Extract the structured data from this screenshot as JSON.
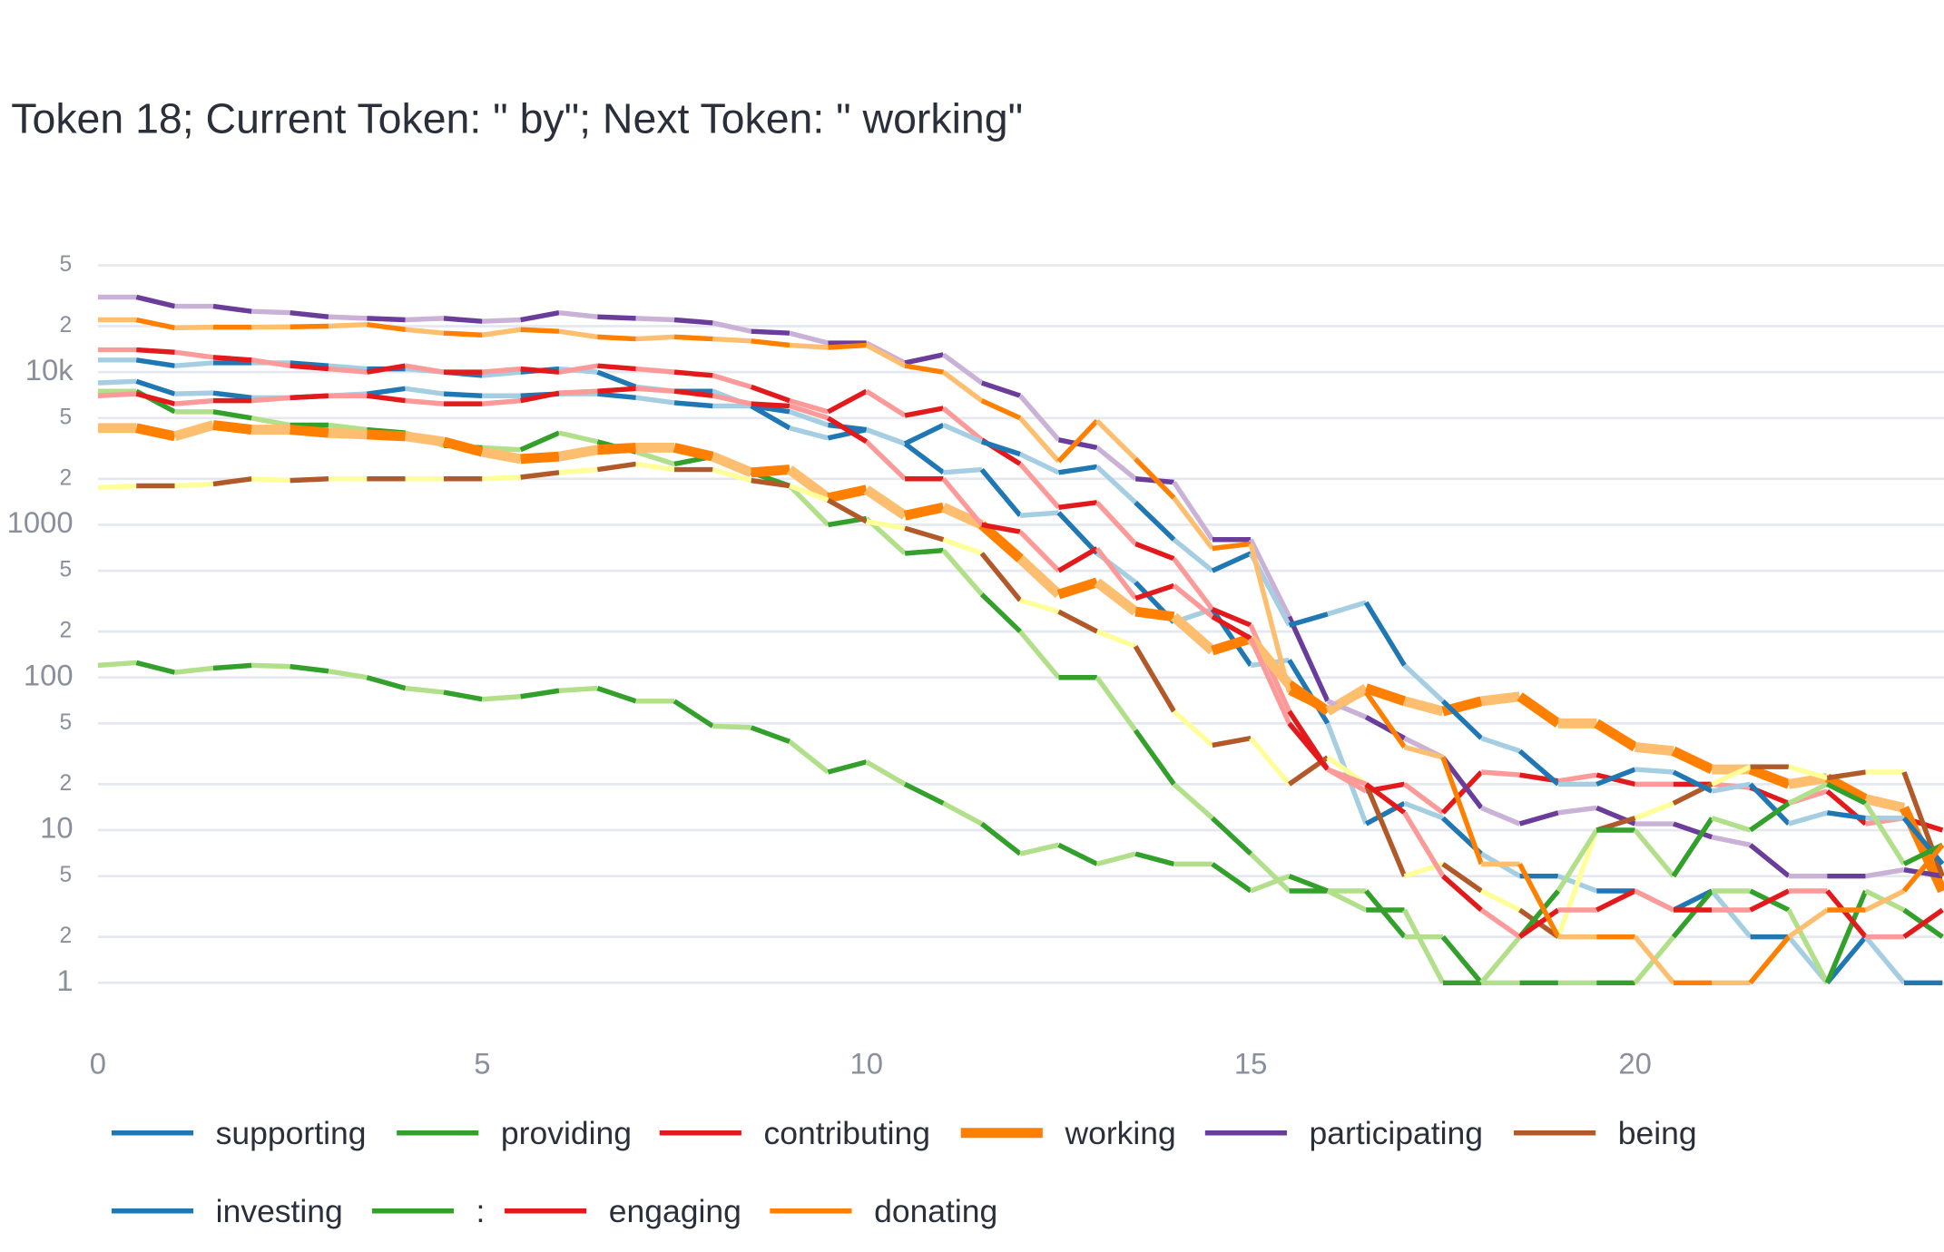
{
  "chart_data": {
    "type": "line",
    "title": "Token 18; Current Token: \" by\"; Next Token: \" working\"",
    "log_y": true,
    "grid": true,
    "xlim": [
      0,
      24.02
    ],
    "ylim": [
      0.5,
      65000
    ],
    "xticks": [
      0,
      5,
      10,
      15,
      20
    ],
    "yticks": [
      1,
      2,
      5,
      10,
      {
        "value": 20,
        "label": "2"
      },
      {
        "value": 50,
        "label": "5"
      },
      100,
      {
        "value": 200,
        "label": "2"
      },
      {
        "value": 500,
        "label": "5"
      },
      1000,
      {
        "value": 2000,
        "label": "2"
      },
      {
        "value": 5000,
        "label": "5"
      },
      {
        "value": 10000,
        "label": "10k"
      },
      {
        "value": 20000,
        "label": "2"
      },
      {
        "value": 50000,
        "label": "5"
      }
    ],
    "x": [
      0,
      0.5,
      1,
      1.5,
      2,
      2.5,
      3,
      3.5,
      4,
      4.5,
      5,
      5.5,
      6,
      6.5,
      7,
      7.5,
      8,
      8.5,
      9,
      9.5,
      10,
      10.5,
      11,
      11.5,
      12,
      12.5,
      13,
      13.5,
      14,
      14.5,
      15,
      15.5,
      16,
      16.5,
      17,
      17.5,
      18,
      18.5,
      19,
      19.5,
      20,
      20.5,
      21,
      21.5,
      22,
      22.5,
      23,
      23.5,
      24
    ],
    "series": [
      {
        "name": "supporting",
        "color": "#1f78b4",
        "light_color": "#a6cee3",
        "line_width": 4,
        "values": [
          12000,
          12000,
          11000,
          11500,
          11500,
          11500,
          11000,
          10500,
          10500,
          10000,
          9500,
          10000,
          10500,
          10000,
          8000,
          7500,
          7500,
          6000,
          5500,
          4500,
          4200,
          3400,
          2200,
          2300,
          1150,
          1200,
          650,
          420,
          230,
          280,
          120,
          130,
          50,
          11,
          15,
          12,
          7,
          5,
          5,
          4,
          4,
          3,
          4,
          2,
          2,
          1,
          2,
          1,
          1
        ]
      },
      {
        "name": "providing",
        "color": "#33a02c",
        "light_color": "#b2df8a",
        "line_width": 4,
        "values": [
          7500,
          7500,
          5500,
          5500,
          5000,
          4500,
          4500,
          4200,
          4000,
          3300,
          3200,
          3100,
          4000,
          3500,
          3000,
          2500,
          2800,
          2200,
          1800,
          1000,
          1100,
          650,
          680,
          350,
          200,
          100,
          100,
          45,
          20,
          12,
          7,
          4,
          4,
          4,
          2,
          2,
          1,
          1,
          1,
          1,
          1,
          2,
          4,
          4,
          3,
          1,
          4,
          3,
          2
        ]
      },
      {
        "name": "contributing",
        "color": "#e31a1c",
        "light_color": "#fb9a99",
        "line_width": 4,
        "values": [
          14000,
          14000,
          13500,
          12500,
          12000,
          11000,
          10500,
          10000,
          11000,
          10000,
          10000,
          10500,
          10000,
          11000,
          10500,
          10000,
          9500,
          8000,
          6500,
          5500,
          7500,
          5200,
          5800,
          3600,
          2500,
          1300,
          1400,
          750,
          600,
          280,
          220,
          60,
          25,
          18,
          20,
          13,
          24,
          23,
          21,
          23,
          20,
          20,
          20,
          19,
          15,
          18,
          11,
          12,
          10
        ]
      },
      {
        "name": "working",
        "color": "#ff7f00",
        "light_color": "#fdbf6f",
        "line_width": 8,
        "values": [
          4300,
          4300,
          3800,
          4500,
          4200,
          4200,
          4000,
          3900,
          3800,
          3500,
          3000,
          2700,
          2800,
          3100,
          3200,
          3200,
          2800,
          2200,
          2300,
          1500,
          1700,
          1150,
          1300,
          1000,
          600,
          350,
          420,
          270,
          250,
          150,
          180,
          90,
          60,
          85,
          70,
          60,
          70,
          75,
          50,
          50,
          35,
          33,
          25,
          25,
          20,
          22,
          16,
          14,
          4
        ]
      },
      {
        "name": "participating",
        "color": "#6a3d9a",
        "light_color": "#cab2d6",
        "line_width": 4,
        "values": [
          31000,
          31000,
          27000,
          27000,
          25000,
          24500,
          23000,
          22500,
          22000,
          22500,
          21500,
          22000,
          24500,
          23000,
          22500,
          22000,
          21000,
          18500,
          18000,
          15500,
          15500,
          11500,
          13000,
          8500,
          7000,
          3600,
          3200,
          2000,
          1900,
          800,
          800,
          250,
          70,
          55,
          40,
          30,
          14,
          11,
          13,
          14,
          11,
          11,
          9,
          8,
          5,
          5,
          5,
          5.5,
          5
        ]
      },
      {
        "name": "being",
        "color": "#b15928",
        "light_color": "#ffff99",
        "line_width": 4,
        "values": [
          1750,
          1800,
          1800,
          1850,
          2000,
          1950,
          2000,
          2000,
          2000,
          2000,
          2000,
          2050,
          2200,
          2300,
          2500,
          2300,
          2300,
          1950,
          1800,
          1450,
          1050,
          950,
          800,
          650,
          320,
          270,
          200,
          160,
          60,
          36,
          40,
          20,
          30,
          20,
          5,
          6,
          4,
          3,
          2,
          10,
          12,
          15,
          20,
          26,
          26,
          22,
          24,
          24,
          5
        ]
      },
      {
        "name": "investing",
        "color": "#1f78b4",
        "light_color": "#a6cee3",
        "line_width": 4,
        "values": [
          8500,
          8700,
          7200,
          7300,
          6800,
          6800,
          7000,
          7200,
          7800,
          7200,
          7000,
          7000,
          7200,
          7200,
          6800,
          6300,
          6000,
          6000,
          4300,
          3700,
          4200,
          3400,
          4500,
          3500,
          2900,
          2200,
          2400,
          1400,
          800,
          500,
          650,
          220,
          260,
          310,
          120,
          70,
          40,
          33,
          20,
          20,
          25,
          24,
          18,
          20,
          11,
          13,
          12,
          12,
          6
        ]
      },
      {
        "name": ":",
        "color": "#33a02c",
        "light_color": "#b2df8a",
        "line_width": 4,
        "values": [
          120,
          125,
          108,
          115,
          120,
          118,
          110,
          100,
          85,
          80,
          72,
          75,
          82,
          85,
          70,
          70,
          48,
          47,
          38,
          24,
          28,
          20,
          15,
          11,
          7,
          8,
          6,
          7,
          6,
          6,
          4,
          5,
          4,
          3,
          3,
          1,
          1,
          2,
          4,
          10,
          10,
          5,
          12,
          10,
          15,
          20,
          15,
          6,
          8
        ]
      },
      {
        "name": "engaging",
        "color": "#e31a1c",
        "light_color": "#fb9a99",
        "line_width": 4,
        "values": [
          7000,
          7200,
          6200,
          6500,
          6500,
          6800,
          7000,
          7000,
          6500,
          6200,
          6200,
          6500,
          7300,
          7500,
          7800,
          7500,
          7000,
          6200,
          6000,
          5000,
          3500,
          2000,
          2000,
          1000,
          900,
          500,
          700,
          330,
          400,
          250,
          180,
          50,
          25,
          20,
          13,
          5,
          3,
          2,
          3,
          3,
          4,
          3,
          3,
          3,
          4,
          4,
          2,
          2,
          3
        ]
      },
      {
        "name": "donating",
        "color": "#ff7f00",
        "light_color": "#fdbf6f",
        "line_width": 4,
        "values": [
          22000,
          22000,
          19500,
          19700,
          19700,
          19800,
          20000,
          20500,
          19000,
          18000,
          17500,
          19000,
          18500,
          17000,
          16500,
          17000,
          16500,
          16000,
          15000,
          14500,
          15000,
          11000,
          10000,
          6500,
          5000,
          2600,
          4800,
          2700,
          1500,
          700,
          750,
          80,
          60,
          80,
          35,
          30,
          6,
          6,
          2,
          2,
          2,
          1,
          1,
          1,
          2,
          3,
          3,
          4,
          8
        ]
      }
    ]
  }
}
